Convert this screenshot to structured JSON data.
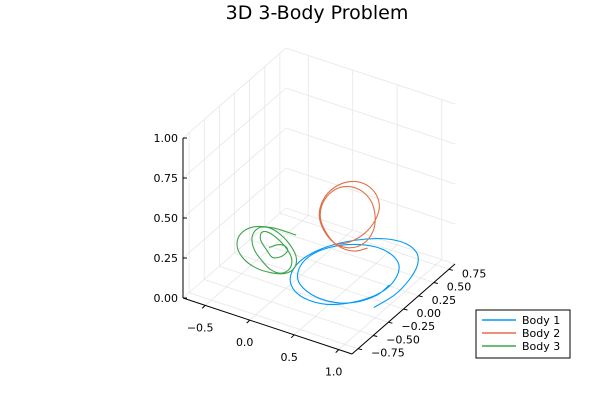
{
  "chart_data": {
    "type": "line",
    "title": "3D 3-Body Problem",
    "xlabel": "",
    "ylabel": "",
    "zlabel": "",
    "xlim": [
      -0.75,
      1.15
    ],
    "ylim": [
      -0.85,
      0.85
    ],
    "zlim": [
      0.0,
      1.0
    ],
    "x_ticks": [
      "−0.5",
      "0.0",
      "0.5",
      "1.0"
    ],
    "y_ticks": [
      "−0.75",
      "−0.50",
      "−0.25",
      "0.00",
      "0.25",
      "0.50",
      "0.75"
    ],
    "z_ticks": [
      "0.00",
      "0.25",
      "0.50",
      "0.75",
      "1.00"
    ],
    "grid": true,
    "legend_position": "bottom-right",
    "series": [
      {
        "name": "Body 1",
        "color": "#009af9",
        "x": [
          0.97,
          1.05,
          1.06,
          1.02,
          0.92,
          0.76,
          0.56,
          0.34,
          0.15,
          0.03,
          0.0,
          0.06,
          0.2,
          0.38,
          0.58,
          0.76,
          0.9,
          0.97,
          0.96,
          0.88,
          0.72,
          0.52,
          0.31,
          0.13,
          0.03,
          0.03,
          0.12,
          0.28,
          0.48,
          0.68,
          0.84,
          0.94,
          0.96
        ],
        "y": [
          -0.22,
          0.0,
          0.22,
          0.42,
          0.56,
          0.62,
          0.6,
          0.5,
          0.33,
          0.12,
          -0.08,
          -0.27,
          -0.4,
          -0.46,
          -0.44,
          -0.35,
          -0.2,
          -0.02,
          0.16,
          0.32,
          0.43,
          0.46,
          0.42,
          0.3,
          0.13,
          -0.06,
          -0.23,
          -0.34,
          -0.39,
          -0.36,
          -0.27,
          -0.12,
          0.04
        ],
        "z": [
          0.05,
          0.07,
          0.09,
          0.11,
          0.12,
          0.13,
          0.13,
          0.12,
          0.11,
          0.1,
          0.09,
          0.08,
          0.07,
          0.07,
          0.07,
          0.08,
          0.09,
          0.1,
          0.11,
          0.12,
          0.12,
          0.12,
          0.11,
          0.1,
          0.09,
          0.08,
          0.07,
          0.07,
          0.07,
          0.07,
          0.08,
          0.09,
          0.1
        ]
      },
      {
        "name": "Body 2",
        "color": "#e26f46",
        "x": [
          0.35,
          0.5,
          0.62,
          0.66,
          0.62,
          0.5,
          0.34,
          0.19,
          0.08,
          0.04,
          0.08,
          0.2,
          0.36,
          0.52,
          0.63,
          0.66,
          0.6,
          0.48,
          0.32,
          0.17,
          0.07,
          0.04,
          0.1,
          0.24,
          0.4,
          0.56,
          0.66
        ],
        "y": [
          0.02,
          0.05,
          0.13,
          0.25,
          0.38,
          0.48,
          0.53,
          0.51,
          0.43,
          0.31,
          0.18,
          0.08,
          0.02,
          0.02,
          0.09,
          0.21,
          0.34,
          0.45,
          0.51,
          0.5,
          0.42,
          0.3,
          0.17,
          0.07,
          0.02,
          0.04,
          0.12
        ],
        "z": [
          0.25,
          0.28,
          0.33,
          0.38,
          0.42,
          0.45,
          0.46,
          0.45,
          0.42,
          0.38,
          0.33,
          0.29,
          0.26,
          0.26,
          0.28,
          0.32,
          0.36,
          0.4,
          0.42,
          0.42,
          0.4,
          0.36,
          0.32,
          0.28,
          0.25,
          0.24,
          0.25
        ]
      },
      {
        "name": "Body 3",
        "color": "#3da44d",
        "x": [
          -0.3,
          -0.52,
          -0.66,
          -0.7,
          -0.64,
          -0.5,
          -0.32,
          -0.15,
          -0.04,
          -0.02,
          -0.1,
          -0.26,
          -0.44,
          -0.58,
          -0.64,
          -0.62,
          -0.5,
          -0.33,
          -0.18,
          -0.06,
          -0.02,
          -0.08,
          -0.22,
          -0.4,
          -0.55,
          -0.6,
          -0.55,
          -0.42,
          -0.3,
          -0.22,
          -0.2,
          -0.25,
          -0.33,
          -0.4
        ],
        "y": [
          0.35,
          0.3,
          0.18,
          0.03,
          -0.12,
          -0.24,
          -0.3,
          -0.28,
          -0.2,
          -0.08,
          0.06,
          0.18,
          0.26,
          0.28,
          0.22,
          0.1,
          -0.04,
          -0.16,
          -0.24,
          -0.24,
          -0.16,
          -0.04,
          0.08,
          0.18,
          0.24,
          0.22,
          0.14,
          0.04,
          -0.04,
          -0.02,
          0.06,
          0.12,
          0.12,
          0.06
        ],
        "z": [
          0.08,
          0.1,
          0.12,
          0.12,
          0.11,
          0.1,
          0.09,
          0.08,
          0.07,
          0.07,
          0.08,
          0.09,
          0.1,
          0.1,
          0.1,
          0.09,
          0.08,
          0.08,
          0.08,
          0.08,
          0.09,
          0.1,
          0.1,
          0.1,
          0.09,
          0.08,
          0.07,
          0.07,
          0.07,
          0.08,
          0.09,
          0.09,
          0.09,
          0.08
        ]
      }
    ]
  }
}
